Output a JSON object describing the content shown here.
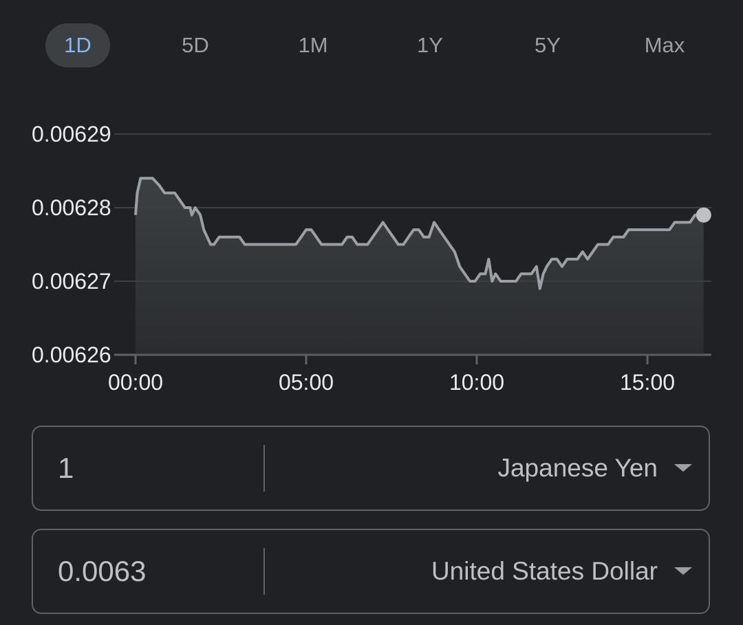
{
  "range_tabs": [
    {
      "label": "1D",
      "active": true
    },
    {
      "label": "5D",
      "active": false
    },
    {
      "label": "1M",
      "active": false
    },
    {
      "label": "1Y",
      "active": false
    },
    {
      "label": "5Y",
      "active": false
    },
    {
      "label": "Max",
      "active": false
    }
  ],
  "chart_data": {
    "type": "area",
    "title": "",
    "xlabel": "",
    "ylabel": "",
    "y_ticks": [
      "0.00629",
      "0.00628",
      "0.00627",
      "0.00626"
    ],
    "y_tick_values": [
      0.00629,
      0.00628,
      0.00627,
      0.00626
    ],
    "x_ticks": [
      "00:00",
      "05:00",
      "10:00",
      "15:00"
    ],
    "x_tick_values": [
      0,
      5,
      10,
      15
    ],
    "ylim": [
      0.00626,
      0.00629
    ],
    "xlim": [
      -0.05,
      16.8
    ],
    "grid": true,
    "colors": {
      "line": "#9aa0a6",
      "fill": "#3c4043",
      "grid": "#3c4043",
      "axis": "#5f6368",
      "dot": "#bdc1c6"
    },
    "x": [
      0,
      0.05,
      0.15,
      0.25,
      0.35,
      0.5,
      0.7,
      0.85,
      1.0,
      1.15,
      1.3,
      1.45,
      1.6,
      1.65,
      1.75,
      1.9,
      2.0,
      2.1,
      2.2,
      2.3,
      2.45,
      2.6,
      2.75,
      2.9,
      3.05,
      3.2,
      3.35,
      3.5,
      3.65,
      3.8,
      3.95,
      4.1,
      4.25,
      4.4,
      4.55,
      4.7,
      4.85,
      5.0,
      5.15,
      5.3,
      5.45,
      5.6,
      5.75,
      5.9,
      6.05,
      6.2,
      6.35,
      6.5,
      6.65,
      6.8,
      6.95,
      7.1,
      7.25,
      7.4,
      7.55,
      7.7,
      7.85,
      8.0,
      8.15,
      8.3,
      8.45,
      8.6,
      8.75,
      8.9,
      9.05,
      9.2,
      9.35,
      9.5,
      9.65,
      9.8,
      9.95,
      10.1,
      10.25,
      10.35,
      10.45,
      10.55,
      10.7,
      10.85,
      11.0,
      11.15,
      11.3,
      11.45,
      11.6,
      11.75,
      11.85,
      11.95,
      12.05,
      12.2,
      12.35,
      12.5,
      12.65,
      12.8,
      12.95,
      13.1,
      13.25,
      13.4,
      13.55,
      13.7,
      13.85,
      14.0,
      14.15,
      14.3,
      14.45,
      14.6,
      14.75,
      14.9,
      15.05,
      15.2,
      15.35,
      15.5,
      15.65,
      15.8,
      15.95,
      16.1,
      16.25,
      16.4,
      16.55,
      16.65
    ],
    "y": [
      0.006279,
      0.006282,
      0.006284,
      0.006284,
      0.006284,
      0.006284,
      0.006283,
      0.006282,
      0.006282,
      0.006282,
      0.006281,
      0.00628,
      0.00628,
      0.006279,
      0.00628,
      0.006279,
      0.006277,
      0.006276,
      0.006275,
      0.006275,
      0.006276,
      0.006276,
      0.006276,
      0.006276,
      0.006276,
      0.006275,
      0.006275,
      0.006275,
      0.006275,
      0.006275,
      0.006275,
      0.006275,
      0.006275,
      0.006275,
      0.006275,
      0.006275,
      0.006276,
      0.006277,
      0.006277,
      0.006276,
      0.006275,
      0.006275,
      0.006275,
      0.006275,
      0.006275,
      0.006276,
      0.006276,
      0.006275,
      0.006275,
      0.006275,
      0.006276,
      0.006277,
      0.006278,
      0.006277,
      0.006276,
      0.006275,
      0.006275,
      0.006276,
      0.006277,
      0.006277,
      0.006276,
      0.006276,
      0.006278,
      0.006277,
      0.006276,
      0.006275,
      0.006274,
      0.006272,
      0.006271,
      0.00627,
      0.00627,
      0.006271,
      0.006271,
      0.006273,
      0.00627,
      0.006271,
      0.00627,
      0.00627,
      0.00627,
      0.00627,
      0.006271,
      0.006271,
      0.006271,
      0.006272,
      0.006269,
      0.006271,
      0.006272,
      0.006273,
      0.006273,
      0.006272,
      0.006273,
      0.006273,
      0.006273,
      0.006274,
      0.006273,
      0.006274,
      0.006275,
      0.006275,
      0.006275,
      0.006276,
      0.006276,
      0.006276,
      0.006277,
      0.006277,
      0.006277,
      0.006277,
      0.006277,
      0.006277,
      0.006277,
      0.006277,
      0.006277,
      0.006278,
      0.006278,
      0.006278,
      0.006278,
      0.006279,
      0.006279,
      0.006279
    ]
  },
  "converter": {
    "from": {
      "amount": "1",
      "currency": "Japanese Yen"
    },
    "to": {
      "amount": "0.0063",
      "currency": "United States Dollar"
    }
  }
}
